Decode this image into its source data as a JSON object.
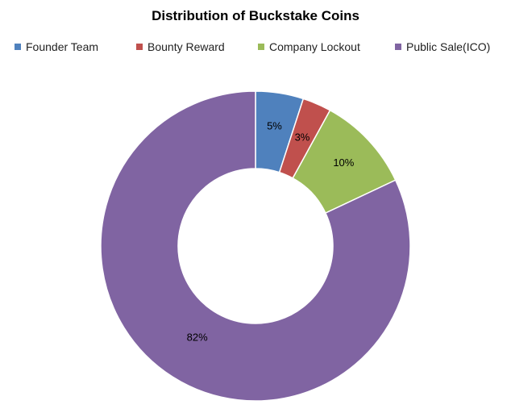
{
  "chart_data": {
    "type": "pie",
    "donut": true,
    "title": "Distribution of Buckstake Coins",
    "legend_position": "top",
    "categories": [
      "Founder Team",
      "Bounty Reward",
      "Company Lockout",
      "Public Sale(ICO)"
    ],
    "values": [
      5,
      3,
      10,
      82
    ],
    "data_labels": [
      "5%",
      "3%",
      "10%",
      "82%"
    ],
    "colors": [
      "#4f81bd",
      "#c0504d",
      "#9bbb59",
      "#8064a2"
    ]
  }
}
